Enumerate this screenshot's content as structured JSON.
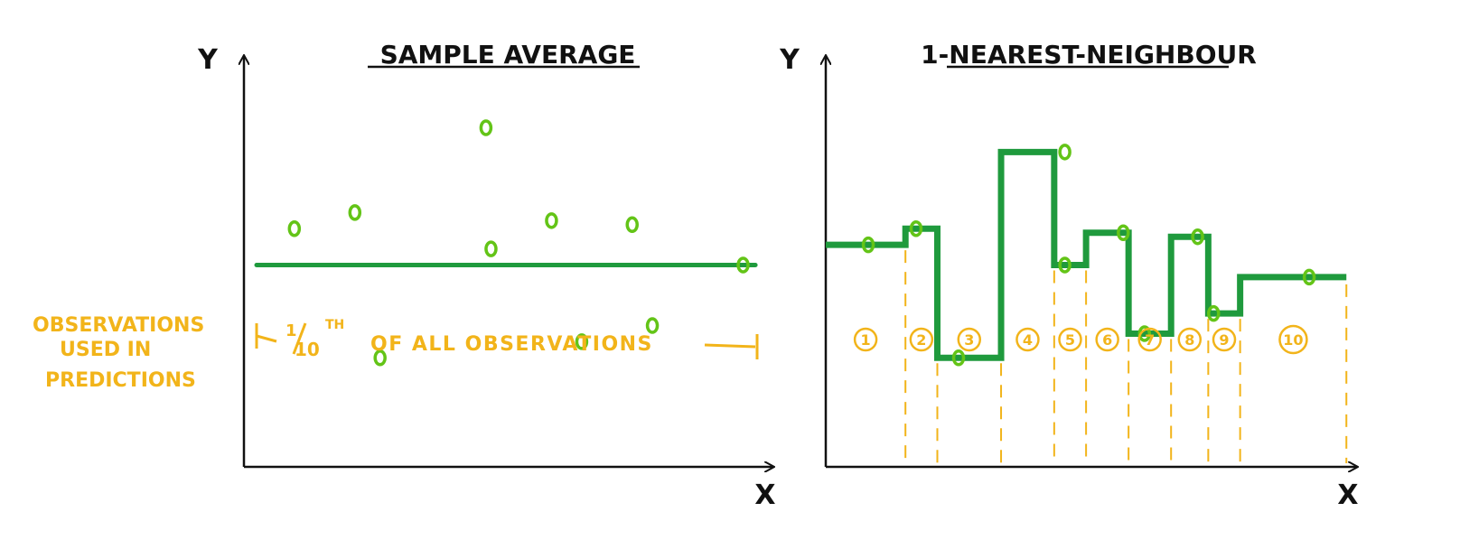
{
  "colors": {
    "ink": "#111111",
    "green_dark": "#1f9a3d",
    "green_light": "#63c417",
    "orange": "#f2b41a"
  },
  "left_panel": {
    "title": "SAMPLE AVERAGE",
    "y_label": "Y",
    "x_label": "X",
    "side_note": [
      "OBSERVATIONS",
      "USED IN",
      "PREDICTIONS"
    ],
    "bracket_fraction": "1/10",
    "bracket_fraction_num": "1",
    "bracket_fraction_den": "10",
    "bracket_suffix": "TH",
    "bracket_text": "OF ALL OBSERVATIONS"
  },
  "right_panel": {
    "title": "1-NEAREST-NEIGHBOUR",
    "y_label": "Y",
    "x_label": "X",
    "region_labels": [
      "1",
      "2",
      "3",
      "4",
      "5",
      "6",
      "7",
      "8",
      "9",
      "10"
    ]
  },
  "chart_data": [
    {
      "type": "scatter",
      "title": "SAMPLE AVERAGE",
      "xlabel": "X",
      "ylabel": "Y",
      "points": [
        {
          "x": 1.0,
          "y": 5.9
        },
        {
          "x": 2.2,
          "y": 6.3
        },
        {
          "x": 2.7,
          "y": 2.7
        },
        {
          "x": 4.8,
          "y": 8.4
        },
        {
          "x": 4.9,
          "y": 5.4
        },
        {
          "x": 6.1,
          "y": 6.1
        },
        {
          "x": 6.7,
          "y": 3.1
        },
        {
          "x": 7.7,
          "y": 6.0
        },
        {
          "x": 8.1,
          "y": 3.5
        },
        {
          "x": 9.9,
          "y": 5.0
        }
      ],
      "mean_line": 5.0,
      "xlim": [
        0,
        10.5
      ],
      "ylim": [
        0,
        10
      ]
    },
    {
      "type": "line",
      "step": true,
      "title": "1-NEAREST-NEIGHBOUR",
      "xlabel": "X",
      "ylabel": "Y",
      "points": [
        {
          "x": 0.8,
          "y": 5.5
        },
        {
          "x": 1.7,
          "y": 5.9
        },
        {
          "x": 2.5,
          "y": 2.7
        },
        {
          "x": 4.5,
          "y": 7.8
        },
        {
          "x": 4.5,
          "y": 5.0
        },
        {
          "x": 5.6,
          "y": 5.8
        },
        {
          "x": 6.0,
          "y": 3.3
        },
        {
          "x": 7.0,
          "y": 5.7
        },
        {
          "x": 7.3,
          "y": 3.8
        },
        {
          "x": 9.1,
          "y": 4.7
        }
      ],
      "region_boundaries": [
        1.5,
        2.1,
        3.3,
        4.3,
        4.9,
        5.7,
        6.5,
        7.2,
        7.8,
        9.8
      ],
      "xlim": [
        0,
        10
      ],
      "ylim": [
        0,
        10
      ]
    }
  ]
}
